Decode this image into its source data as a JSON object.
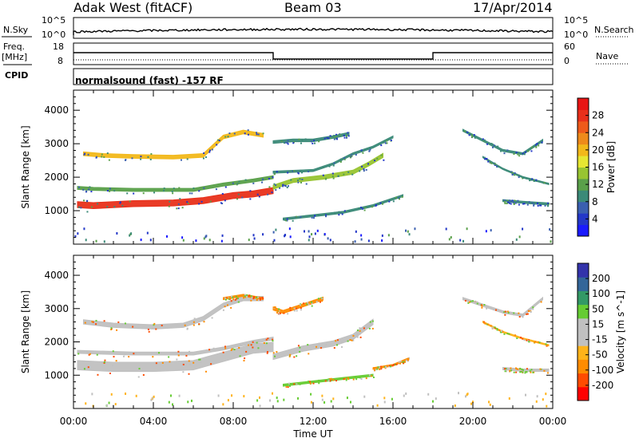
{
  "header": {
    "station": "Adak West (fitACF)",
    "beam": "Beam 03",
    "date": "17/Apr/2014"
  },
  "panels": {
    "nsky": {
      "label": "N.Sky",
      "ticks": [
        "10^5",
        "10^0"
      ]
    },
    "nsearch": {
      "label": "N.Search",
      "ticks": [
        "10^5",
        "10^0"
      ]
    },
    "freq": {
      "label_line1": "Freq.",
      "label_line2": "[MHz]",
      "ticks": [
        "18",
        "8"
      ]
    },
    "nave": {
      "label": "Nave",
      "ticks": [
        "60",
        "0"
      ]
    },
    "cpid": {
      "label": "CPID",
      "text": "normalsound (fast) -157 RF"
    }
  },
  "chart_data": [
    {
      "type": "heatmap",
      "parameter": "power",
      "ylabel": "Slant Range [km]",
      "ylim": [
        0,
        4600
      ],
      "yticks": [
        1000,
        2000,
        3000,
        4000
      ],
      "colorbar": {
        "label": "Power [dB]",
        "ticks": [
          4,
          8,
          12,
          16,
          20,
          24,
          28
        ],
        "range": [
          0,
          32
        ]
      },
      "bands": [
        {
          "points": [
            [
              0.2,
              1180
            ],
            [
              1,
              1150
            ],
            [
              3,
              1210
            ],
            [
              5,
              1230
            ],
            [
              6.5,
              1300
            ],
            [
              8,
              1450
            ],
            [
              9,
              1500
            ],
            [
              10,
              1600
            ]
          ],
          "thick": 180,
          "value": 28
        },
        {
          "points": [
            [
              0.2,
              1680
            ],
            [
              1,
              1650
            ],
            [
              3,
              1620
            ],
            [
              6,
              1620
            ],
            [
              7.5,
              1780
            ],
            [
              9,
              1900
            ],
            [
              10,
              2000
            ]
          ],
          "thick": 90,
          "value": 12
        },
        {
          "points": [
            [
              0.5,
              2700
            ],
            [
              1.5,
              2650
            ],
            [
              3,
              2620
            ],
            [
              5,
              2600
            ],
            [
              6.5,
              2650
            ],
            [
              7.5,
              3200
            ],
            [
              8.5,
              3350
            ],
            [
              9.5,
              3250
            ]
          ],
          "thick": 110,
          "value": 20
        },
        {
          "points": [
            [
              10,
              1700
            ],
            [
              11,
              1900
            ],
            [
              12.5,
              2000
            ],
            [
              14,
              2150
            ],
            [
              14.8,
              2400
            ],
            [
              15.5,
              2650
            ]
          ],
          "thick": 120,
          "value": 14
        },
        {
          "points": [
            [
              10,
              3050
            ],
            [
              11,
              3100
            ],
            [
              12,
              3100
            ],
            [
              13,
              3200
            ],
            [
              13.8,
              3300
            ]
          ],
          "thick": 80,
          "value": 8
        },
        {
          "points": [
            [
              10,
              2150
            ],
            [
              12,
              2200
            ],
            [
              13,
              2400
            ],
            [
              14,
              2700
            ],
            [
              15,
              2900
            ],
            [
              16,
              3200
            ]
          ],
          "thick": 60,
          "value": 8
        },
        {
          "points": [
            [
              10.5,
              750
            ],
            [
              12,
              850
            ],
            [
              13.5,
              950
            ],
            [
              15,
              1150
            ],
            [
              16.5,
              1450
            ]
          ],
          "thick": 60,
          "value": 8
        },
        {
          "points": [
            [
              19.5,
              3400
            ],
            [
              20.5,
              3100
            ],
            [
              21.5,
              2800
            ],
            [
              22.5,
              2700
            ],
            [
              23.5,
              3100
            ]
          ],
          "thick": 60,
          "value": 8
        },
        {
          "points": [
            [
              20.5,
              2600
            ],
            [
              21.5,
              2250
            ],
            [
              22.5,
              2000
            ],
            [
              23.8,
              1800
            ]
          ],
          "thick": 40,
          "value": 8
        },
        {
          "points": [
            [
              21.5,
              1300
            ],
            [
              22.5,
              1250
            ],
            [
              23.8,
              1200
            ]
          ],
          "thick": 60,
          "value": 8
        }
      ]
    },
    {
      "type": "heatmap",
      "parameter": "velocity",
      "xlabel": "Time UT",
      "ylabel": "Slant Range [km]",
      "ylim": [
        0,
        4600
      ],
      "yticks": [
        1000,
        2000,
        3000,
        4000
      ],
      "xticks": [
        "00:00",
        "04:00",
        "08:00",
        "12:00",
        "16:00",
        "20:00",
        "00:00"
      ],
      "xlim": [
        0,
        24
      ],
      "colorbar": {
        "label": "Velocity [m s^-1]",
        "ticks": [
          200,
          100,
          50,
          15,
          -15,
          -50,
          -100,
          -200
        ]
      },
      "bands": [
        {
          "points": [
            [
              0.2,
              1300
            ],
            [
              2,
              1250
            ],
            [
              4,
              1250
            ],
            [
              6,
              1300
            ],
            [
              7.5,
              1550
            ],
            [
              9,
              1800
            ],
            [
              10,
              1850
            ]
          ],
          "thick": 280,
          "value": 0
        },
        {
          "points": [
            [
              0.2,
              1700
            ],
            [
              3,
              1650
            ],
            [
              6,
              1650
            ],
            [
              7.5,
              1800
            ],
            [
              9,
              2000
            ],
            [
              10,
              2100
            ]
          ],
          "thick": 90,
          "value": 0
        },
        {
          "points": [
            [
              0.5,
              2600
            ],
            [
              2,
              2500
            ],
            [
              4,
              2450
            ],
            [
              5.5,
              2500
            ],
            [
              6.5,
              2700
            ],
            [
              7.5,
              3100
            ],
            [
              8.5,
              3300
            ],
            [
              9.5,
              3300
            ]
          ],
          "thick": 130,
          "value": 0
        },
        {
          "points": [
            [
              10,
              1550
            ],
            [
              11.5,
              1800
            ],
            [
              13,
              1950
            ],
            [
              14,
              2150
            ],
            [
              15,
              2600
            ]
          ],
          "thick": 160,
          "value": 0
        },
        {
          "points": [
            [
              10,
              3000
            ],
            [
              10.5,
              2900
            ],
            [
              11.5,
              3100
            ],
            [
              12.5,
              3300
            ]
          ],
          "thick": 90,
          "value": -80
        },
        {
          "points": [
            [
              10.5,
              700
            ],
            [
              12,
              800
            ],
            [
              13.5,
              900
            ],
            [
              15,
              1000
            ]
          ],
          "thick": 60,
          "value": 40
        },
        {
          "points": [
            [
              15,
              1200
            ],
            [
              16,
              1300
            ],
            [
              16.8,
              1500
            ]
          ],
          "thick": 50,
          "value": -70
        },
        {
          "points": [
            [
              19.5,
              3300
            ],
            [
              20.5,
              3100
            ],
            [
              21.5,
              2900
            ],
            [
              22.5,
              2800
            ],
            [
              23.5,
              3300
            ]
          ],
          "thick": 70,
          "value": 0
        },
        {
          "points": [
            [
              20.5,
              2600
            ],
            [
              21.5,
              2300
            ],
            [
              22.5,
              2100
            ],
            [
              23.8,
              1900
            ]
          ],
          "thick": 40,
          "value": -30
        },
        {
          "points": [
            [
              21.5,
              1200
            ],
            [
              22.5,
              1150
            ],
            [
              23.8,
              1150
            ]
          ],
          "thick": 70,
          "value": 0
        },
        {
          "points": [
            [
              7.5,
              3300
            ],
            [
              8.5,
              3400
            ],
            [
              9.5,
              3300
            ]
          ],
          "thick": 60,
          "value": -70
        }
      ]
    }
  ]
}
